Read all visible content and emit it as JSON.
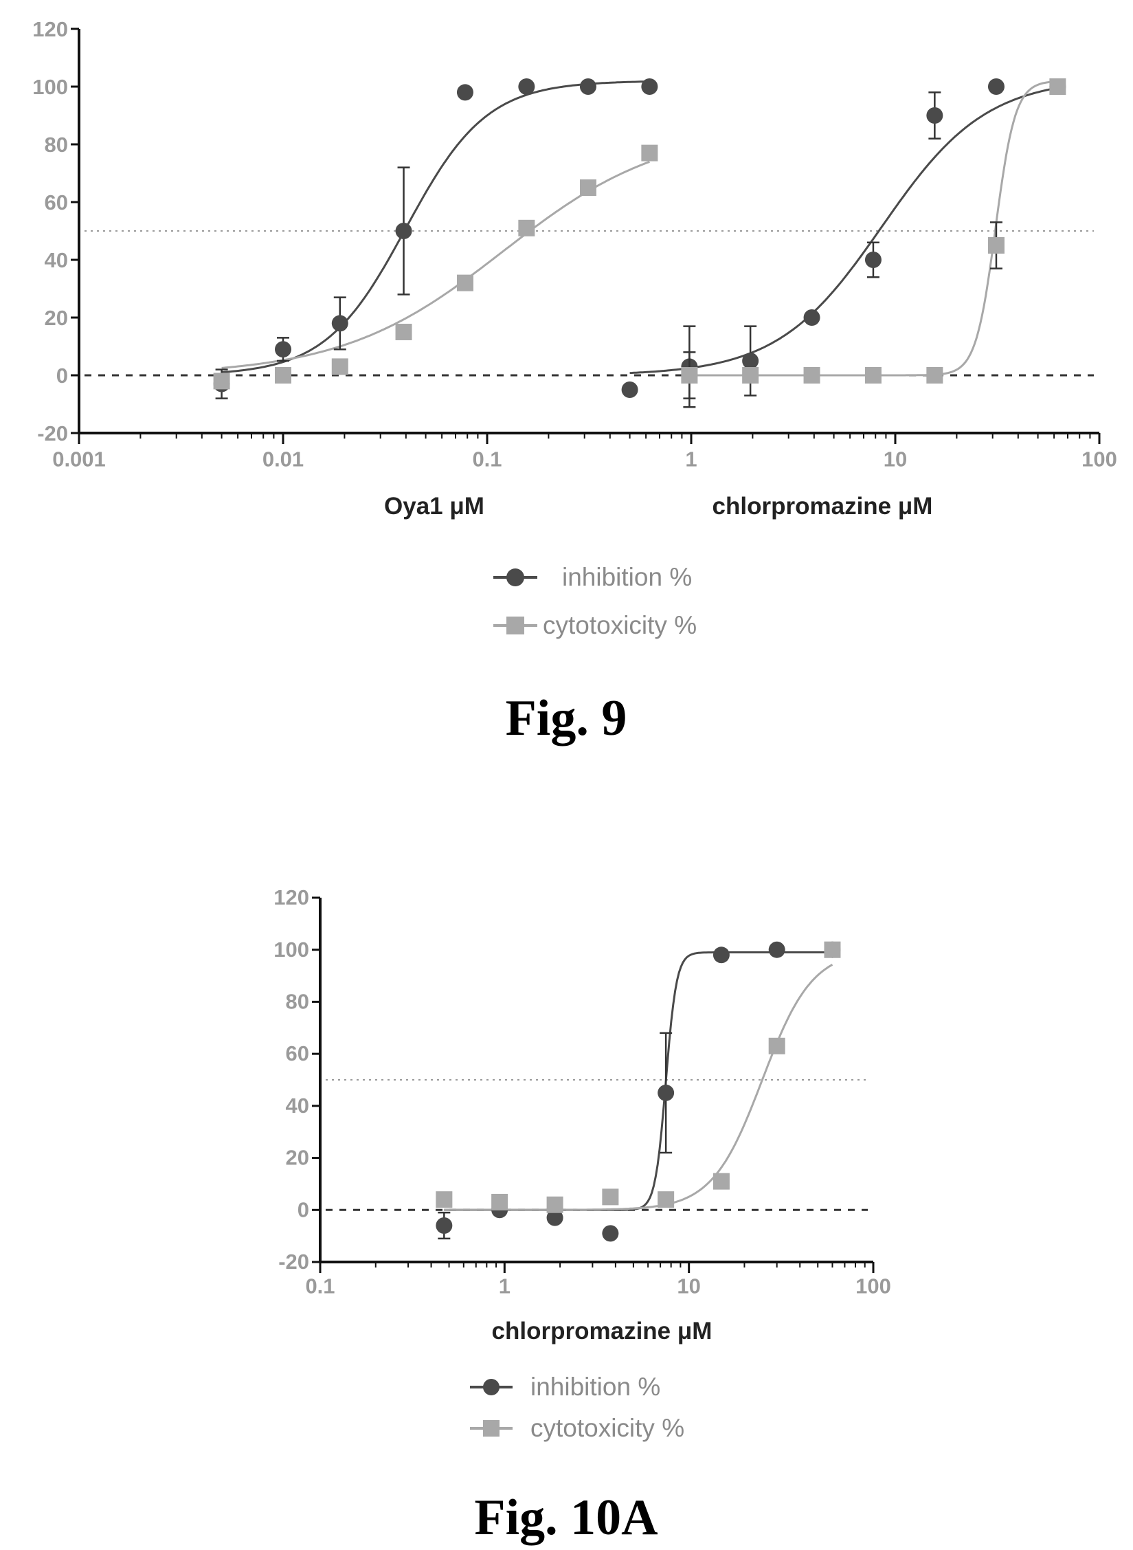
{
  "figures": [
    {
      "caption": "Fig. 9"
    },
    {
      "caption": "Fig. 10A"
    }
  ],
  "colors": {
    "inhibition": "#4a4a4a",
    "cytotoxicity": "#a8a8a8",
    "axis": "#111111"
  },
  "chart_data": [
    {
      "type": "scatter",
      "title": "",
      "x_scale": "log",
      "xlim": [
        0.001,
        100
      ],
      "ylim": [
        -20,
        120
      ],
      "x_ticks": [
        "0.001",
        "0.01",
        "0.1",
        "1",
        "10",
        "100"
      ],
      "y_ticks": [
        "-20",
        "0",
        "20",
        "40",
        "60",
        "80",
        "100",
        "120"
      ],
      "xlabels": [
        "Oya1 μM",
        "chlorpromazine μM"
      ],
      "ylabel": "",
      "reference_lines": [
        {
          "y": 50,
          "style": "dotted"
        },
        {
          "y": 0,
          "style": "dashed"
        }
      ],
      "legend": {
        "placement": "bottom-center",
        "entries": [
          "inhibition %",
          "cytotoxicity %"
        ]
      },
      "series": [
        {
          "name": "inhibition %",
          "group": "Oya1 μM",
          "marker": "circle",
          "x": [
            0.005,
            0.01,
            0.019,
            0.039,
            0.078,
            0.156,
            0.3125,
            0.625
          ],
          "y": [
            -3,
            9,
            18,
            50,
            98,
            100,
            100,
            100
          ],
          "err": [
            5,
            4,
            9,
            22,
            2,
            1,
            1,
            1
          ]
        },
        {
          "name": "cytotoxicity %",
          "group": "Oya1 μM",
          "marker": "square",
          "x": [
            0.005,
            0.01,
            0.019,
            0.039,
            0.078,
            0.156,
            0.3125,
            0.625
          ],
          "y": [
            -2,
            0,
            3,
            15,
            32,
            51,
            65,
            77
          ],
          "err": [
            3,
            2,
            2,
            2,
            2,
            2,
            2,
            2
          ]
        },
        {
          "name": "inhibition %",
          "group": "chlorpromazine μM",
          "marker": "circle",
          "x": [
            0.5,
            0.98,
            1.95,
            3.9,
            7.8,
            15.6,
            31.25,
            62.5
          ],
          "y": [
            -5,
            3,
            5,
            20,
            40,
            90,
            100,
            100
          ],
          "err": [
            3,
            14,
            12,
            2,
            6,
            8,
            1,
            1
          ]
        },
        {
          "name": "cytotoxicity %",
          "group": "chlorpromazine μM",
          "marker": "square",
          "x": [
            0.98,
            1.95,
            3.9,
            7.8,
            15.6,
            31.25,
            62.5
          ],
          "y": [
            0,
            0,
            0,
            0,
            0,
            45,
            100
          ],
          "err": [
            8,
            3,
            2,
            2,
            2,
            8,
            2
          ]
        }
      ],
      "fits": [
        {
          "series": "inhibition %",
          "group": "Oya1 μM",
          "bottom": 0,
          "top": 102,
          "ec50": 0.04,
          "hill": 2.2,
          "xrange": [
            0.005,
            0.625
          ]
        },
        {
          "series": "cytotoxicity %",
          "group": "Oya1 μM",
          "bottom": 0,
          "top": 86,
          "ec50": 0.12,
          "hill": 1.1,
          "xrange": [
            0.005,
            0.625
          ]
        },
        {
          "series": "inhibition %",
          "group": "chlorpromazine μM",
          "bottom": 0,
          "top": 103,
          "ec50": 8.6,
          "hill": 1.7,
          "xrange": [
            0.5,
            62.5
          ]
        },
        {
          "series": "cytotoxicity %",
          "group": "chlorpromazine μM",
          "bottom": 0,
          "top": 102,
          "ec50": 31,
          "hill": 9,
          "xrange": [
            0.98,
            62.5
          ]
        }
      ]
    },
    {
      "type": "scatter",
      "title": "",
      "x_scale": "log",
      "xlim": [
        0.1,
        100
      ],
      "ylim": [
        -20,
        120
      ],
      "x_ticks": [
        "0.1",
        "1",
        "10",
        "100"
      ],
      "y_ticks": [
        "-20",
        "0",
        "20",
        "40",
        "60",
        "80",
        "100",
        "120"
      ],
      "xlabels": [
        "chlorpromazine μM"
      ],
      "ylabel": "",
      "reference_lines": [
        {
          "y": 50,
          "style": "dotted"
        },
        {
          "y": 0,
          "style": "dashed"
        }
      ],
      "legend": {
        "placement": "bottom-center",
        "entries": [
          "inhibition %",
          "cytotoxicity %"
        ]
      },
      "series": [
        {
          "name": "inhibition %",
          "group": "chlorpromazine μM",
          "marker": "circle",
          "x": [
            0.47,
            0.94,
            1.875,
            3.75,
            7.5,
            15,
            30,
            60
          ],
          "y": [
            -6,
            0,
            -3,
            -9,
            45,
            98,
            100,
            100
          ],
          "err": [
            5,
            2,
            2,
            2,
            23,
            2,
            1,
            1
          ]
        },
        {
          "name": "cytotoxicity %",
          "group": "chlorpromazine μM",
          "marker": "square",
          "x": [
            0.47,
            0.94,
            1.875,
            3.75,
            7.5,
            15,
            30,
            60
          ],
          "y": [
            4,
            3,
            2,
            5,
            4,
            11,
            63,
            100
          ],
          "err": [
            2,
            2,
            2,
            2,
            2,
            2,
            2,
            2
          ]
        }
      ],
      "fits": [
        {
          "series": "inhibition %",
          "group": "chlorpromazine μM",
          "bottom": 0,
          "top": 99,
          "ec50": 7.5,
          "hill": 15,
          "xrange": [
            0.47,
            60
          ]
        },
        {
          "series": "cytotoxicity %",
          "group": "chlorpromazine μM",
          "bottom": 0,
          "top": 100,
          "ec50": 25,
          "hill": 3.2,
          "xrange": [
            0.47,
            60
          ]
        }
      ]
    }
  ]
}
